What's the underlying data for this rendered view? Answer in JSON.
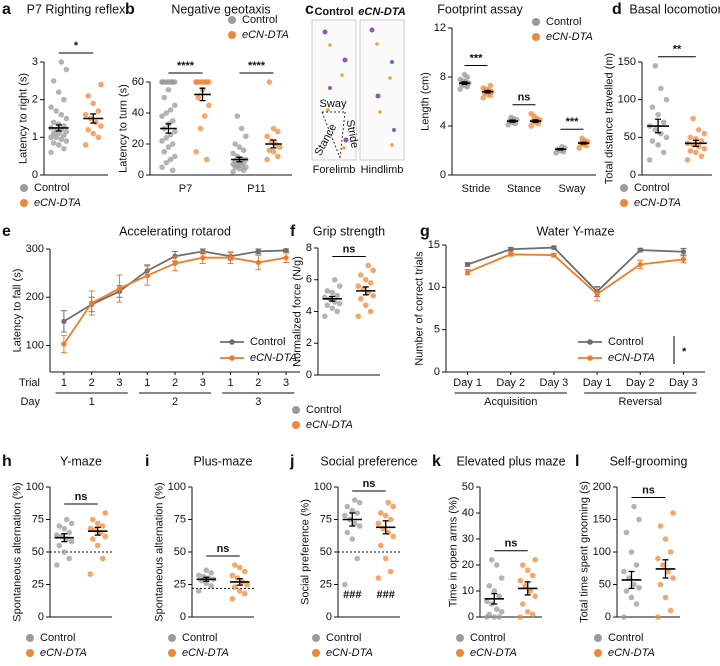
{
  "chart_data": [
    {
      "panel": "a",
      "type": "dot",
      "title": "P7 Righting reflex",
      "ylabel": "Latency to right (s)",
      "ylim": [
        0,
        3
      ],
      "yticks": [
        0,
        1,
        2,
        3
      ],
      "significance": [
        "*"
      ],
      "series": [
        {
          "name": "Control",
          "color": "#9b9b9b",
          "points": [
            [
              0.6,
              0.7,
              0.8,
              0.85,
              0.9,
              0.95,
              1.0,
              1.0,
              1.05,
              1.1,
              1.1,
              1.15,
              1.2,
              1.2,
              1.25,
              1.3,
              1.35,
              1.4,
              1.5,
              1.6,
              1.7,
              1.8,
              2.0,
              2.2,
              2.5,
              2.8,
              3.0
            ]
          ],
          "means": [
            1.25
          ],
          "sem": [
            0.08
          ]
        },
        {
          "name": "eCN-DTA",
          "color": "#f0883a",
          "points": [
            [
              0.8,
              1.0,
              1.1,
              1.2,
              1.3,
              1.4,
              1.5,
              1.6,
              1.7,
              1.9,
              2.1,
              2.4
            ]
          ],
          "means": [
            1.5
          ],
          "sem": [
            0.12
          ]
        }
      ]
    },
    {
      "panel": "b",
      "type": "dot",
      "title": "Negative geotaxis",
      "ylabel": "Latency to turn (s)",
      "ylim": [
        0,
        60
      ],
      "yticks": [
        0,
        20,
        40,
        60
      ],
      "categories": [
        "P7",
        "P11"
      ],
      "significance": [
        "****",
        "****"
      ],
      "series": [
        {
          "name": "Control",
          "color": "#9b9b9b",
          "points": [
            [
              60,
              60,
              60,
              60,
              60,
              60,
              60,
              60,
              60,
              55,
              50,
              45,
              42,
              40,
              38,
              35,
              33,
              30,
              28,
              26,
              24,
              22,
              20,
              18,
              15,
              12,
              10,
              8,
              5,
              3
            ],
            [
              2,
              3,
              4,
              5,
              5,
              6,
              6,
              7,
              8,
              8,
              9,
              10,
              10,
              12,
              14,
              16,
              18,
              20,
              25,
              30,
              38
            ]
          ],
          "means": [
            30,
            10
          ],
          "sem": [
            3,
            1.5
          ]
        },
        {
          "name": "eCN-DTA",
          "color": "#f0883a",
          "points": [
            [
              60,
              60,
              60,
              60,
              60,
              60,
              60,
              60,
              60,
              55,
              50,
              45,
              38,
              30,
              15,
              10
            ],
            [
              10,
              12,
              15,
              16,
              18,
              20,
              22,
              25,
              28,
              30,
              60
            ]
          ],
          "means": [
            52,
            20
          ],
          "sem": [
            4,
            2.5
          ]
        }
      ]
    },
    {
      "panel": "c",
      "type": "dot",
      "title": "Footprint assay",
      "ylabel": "Length (cm)",
      "ylim": [
        0,
        12
      ],
      "yticks": [
        0,
        4,
        8,
        12
      ],
      "categories": [
        "Stride",
        "Stance",
        "Sway"
      ],
      "significance": [
        "***",
        "ns",
        "***"
      ],
      "image": {
        "left_title": "Control",
        "right_title": "eCN-DTA",
        "labels": [
          "Sway",
          "Stride",
          "Stance"
        ],
        "forelimb": "Forelimb",
        "hindlimb": "Hindlimb"
      },
      "series": [
        {
          "name": "Control",
          "color": "#9b9b9b",
          "points": [
            [
              7.0,
              7.2,
              7.3,
              7.4,
              7.5,
              7.6,
              7.7,
              7.8,
              8.0,
              8.2
            ],
            [
              4.1,
              4.2,
              4.3,
              4.4,
              4.5,
              4.6,
              4.7
            ],
            [
              1.8,
              1.9,
              2.0,
              2.1,
              2.2,
              2.3
            ]
          ],
          "means": [
            7.5,
            4.4,
            2.1
          ],
          "sem": [
            0.1,
            0.08,
            0.05
          ]
        },
        {
          "name": "eCN-DTA",
          "color": "#f0883a",
          "points": [
            [
              6.3,
              6.5,
              6.6,
              6.7,
              6.8,
              6.9,
              7.0,
              7.1,
              7.3
            ],
            [
              4.0,
              4.2,
              4.3,
              4.4,
              4.5,
              4.6,
              4.8,
              5.0
            ],
            [
              2.2,
              2.4,
              2.5,
              2.6,
              2.7,
              2.8,
              3.0
            ]
          ],
          "means": [
            6.8,
            4.4,
            2.6
          ],
          "sem": [
            0.1,
            0.1,
            0.07
          ]
        }
      ]
    },
    {
      "panel": "d",
      "type": "dot",
      "title": "Basal locomotion",
      "ylabel": "Total distance travelled (m)",
      "ylim": [
        0,
        150
      ],
      "yticks": [
        0,
        50,
        100,
        150
      ],
      "significance": [
        "**"
      ],
      "series": [
        {
          "name": "Control",
          "color": "#9b9b9b",
          "points": [
            [
              20,
              30,
              40,
              45,
              50,
              55,
              60,
              65,
              70,
              80,
              90,
              100,
              115,
              145
            ]
          ],
          "means": [
            65
          ],
          "sem": [
            9
          ]
        },
        {
          "name": "eCN-DTA",
          "color": "#f0883a",
          "points": [
            [
              20,
              25,
              30,
              32,
              35,
              38,
              40,
              42,
              45,
              48,
              50,
              55,
              60,
              75
            ]
          ],
          "means": [
            42
          ],
          "sem": [
            4
          ]
        }
      ]
    },
    {
      "panel": "e",
      "type": "line",
      "title": "Accelerating rotarod",
      "ylabel": "Latency to fall (s)",
      "ylim": [
        45,
        300
      ],
      "yticks": [
        100,
        200,
        300
      ],
      "x_row_titles": [
        "Trial",
        "Day"
      ],
      "categories": [
        "1",
        "2",
        "3",
        "1",
        "2",
        "3",
        "1",
        "2",
        "3"
      ],
      "groups": [
        "1",
        "2",
        "3"
      ],
      "series": [
        {
          "name": "Control",
          "color": "#6e6e6e",
          "values": [
            150,
            185,
            212,
            255,
            285,
            295,
            285,
            295,
            297
          ],
          "errors": [
            22,
            15,
            12,
            12,
            10,
            5,
            8,
            5,
            3
          ]
        },
        {
          "name": "eCN-DTA",
          "color": "#f07c2a",
          "values": [
            103,
            188,
            218,
            245,
            270,
            282,
            282,
            272,
            282
          ],
          "errors": [
            18,
            25,
            28,
            20,
            15,
            12,
            12,
            15,
            10
          ]
        }
      ]
    },
    {
      "panel": "f",
      "type": "dot",
      "title": "Grip strength",
      "ylabel": "Normalized force (N/g)",
      "ylim": [
        0,
        8
      ],
      "yticks": [
        0,
        2,
        4,
        6,
        8
      ],
      "significance": [
        "ns"
      ],
      "series": [
        {
          "name": "Control",
          "color": "#9b9b9b",
          "points": [
            [
              3.7,
              4.0,
              4.2,
              4.4,
              4.5,
              4.6,
              4.8,
              4.9,
              5.0,
              5.2,
              5.3,
              5.6,
              6.0
            ]
          ],
          "means": [
            4.8
          ],
          "sem": [
            0.15
          ]
        },
        {
          "name": "eCN-DTA",
          "color": "#f0883a",
          "points": [
            [
              3.7,
              4.0,
              4.4,
              4.8,
              5.0,
              5.2,
              5.4,
              5.6,
              5.8,
              6.0,
              6.3,
              6.6,
              6.9
            ]
          ],
          "means": [
            5.3
          ],
          "sem": [
            0.25
          ]
        }
      ]
    },
    {
      "panel": "g",
      "type": "line",
      "title": "Water Y-maze",
      "ylabel": "Number of correct trials",
      "ylim": [
        0,
        15
      ],
      "yticks": [
        0,
        5,
        10,
        15
      ],
      "categories": [
        "Day 1",
        "Day 2",
        "Day 3",
        "Day 1",
        "Day 2",
        "Day 3"
      ],
      "groups": [
        "Acquisition",
        "Reversal"
      ],
      "significance": "*",
      "series": [
        {
          "name": "Control",
          "color": "#6e6e6e",
          "values": [
            12.7,
            14.5,
            14.7,
            9.5,
            14.4,
            14.2
          ],
          "errors": [
            0.2,
            0.2,
            0.15,
            0.6,
            0.2,
            0.4
          ]
        },
        {
          "name": "eCN-DTA",
          "color": "#f07c2a",
          "values": [
            11.8,
            13.9,
            13.8,
            9.2,
            12.7,
            13.3
          ],
          "errors": [
            0.3,
            0.2,
            0.2,
            0.8,
            0.5,
            0.4
          ]
        }
      ]
    },
    {
      "panel": "h",
      "type": "dot",
      "title": "Y-maze",
      "ylabel": "Spontaneous alternation (%)",
      "ylim": [
        0,
        100
      ],
      "yticks": [
        0,
        25,
        50,
        75,
        100
      ],
      "significance": [
        "ns"
      ],
      "reference_line": 50,
      "series": [
        {
          "name": "Control",
          "color": "#9b9b9b",
          "points": [
            [
              40,
              45,
              50,
              55,
              58,
              60,
              62,
              63,
              65,
              68,
              70,
              72,
              75
            ]
          ],
          "means": [
            61
          ],
          "sem": [
            3
          ]
        },
        {
          "name": "eCN-DTA",
          "color": "#f0883a",
          "points": [
            [
              33,
              45,
              55,
              60,
              62,
              65,
              67,
              68,
              70,
              72,
              75,
              80
            ]
          ],
          "means": [
            66
          ],
          "sem": [
            3
          ]
        }
      ]
    },
    {
      "panel": "i",
      "type": "dot",
      "title": "Plus-maze",
      "ylabel": "Spontaneous alternation (%)",
      "ylim": [
        0,
        100
      ],
      "yticks": [
        0,
        25,
        50,
        75,
        100
      ],
      "significance": [
        "ns"
      ],
      "reference_line": 22,
      "series": [
        {
          "name": "Control",
          "color": "#9b9b9b",
          "points": [
            [
              20,
              24,
              26,
              28,
              29,
              30,
              31,
              32,
              34,
              36
            ]
          ],
          "means": [
            29
          ],
          "sem": [
            1.5
          ]
        },
        {
          "name": "eCN-DTA",
          "color": "#f0883a",
          "points": [
            [
              14,
              18,
              20,
              23,
              25,
              27,
              30,
              32,
              35,
              38,
              40
            ]
          ],
          "means": [
            27
          ],
          "sem": [
            2.5
          ]
        }
      ]
    },
    {
      "panel": "j",
      "type": "dot",
      "title": "Social preference",
      "ylabel": "Social preference (%)",
      "ylim": [
        0,
        100
      ],
      "yticks": [
        0,
        25,
        50,
        75,
        100
      ],
      "significance": [
        "ns"
      ],
      "reference_line": 50,
      "series": [
        {
          "name": "Control",
          "color": "#9b9b9b",
          "hash_label": "###",
          "points": [
            [
              25,
              45,
              60,
              65,
              70,
              72,
              75,
              78,
              80,
              82,
              85,
              88,
              90
            ]
          ],
          "means": [
            75
          ],
          "sem": [
            5
          ]
        },
        {
          "name": "eCN-DTA",
          "color": "#f0883a",
          "hash_label": "###",
          "points": [
            [
              30,
              35,
              45,
              55,
              62,
              65,
              68,
              72,
              75,
              78,
              80,
              85,
              88
            ]
          ],
          "means": [
            69
          ],
          "sem": [
            5
          ]
        }
      ]
    },
    {
      "panel": "k",
      "type": "dot",
      "title": "Elevated plus maze",
      "ylabel": "Time in open arms (%)",
      "ylim": [
        0,
        50
      ],
      "yticks": [
        0,
        10,
        20,
        30,
        40,
        50
      ],
      "significance": [
        "ns"
      ],
      "series": [
        {
          "name": "Control",
          "color": "#9b9b9b",
          "points": [
            [
              0,
              0,
              0,
              1,
              2,
              3,
              5,
              6,
              8,
              10,
              12,
              15,
              20,
              22
            ]
          ],
          "means": [
            7
          ],
          "sem": [
            2
          ]
        },
        {
          "name": "eCN-DTA",
          "color": "#f0883a",
          "points": [
            [
              0,
              1,
              2,
              5,
              8,
              10,
              12,
              14,
              16,
              18,
              20,
              22
            ]
          ],
          "means": [
            11
          ],
          "sem": [
            2.5
          ]
        }
      ]
    },
    {
      "panel": "l",
      "type": "dot",
      "title": "Self-grooming",
      "ylabel": "Total time spent grooming (s)",
      "ylim": [
        0,
        200
      ],
      "yticks": [
        0,
        50,
        100,
        150,
        200
      ],
      "significance": [
        "ns"
      ],
      "series": [
        {
          "name": "Control",
          "color": "#9b9b9b",
          "points": [
            [
              0,
              20,
              30,
              40,
              45,
              50,
              60,
              70,
              80,
              100,
              130,
              150,
              170
            ]
          ],
          "means": [
            57
          ],
          "sem": [
            13
          ]
        },
        {
          "name": "eCN-DTA",
          "color": "#f0883a",
          "points": [
            [
              0,
              10,
              30,
              50,
              60,
              70,
              80,
              90,
              100,
              120,
              140,
              160
            ]
          ],
          "means": [
            74
          ],
          "sem": [
            14
          ]
        }
      ]
    }
  ]
}
